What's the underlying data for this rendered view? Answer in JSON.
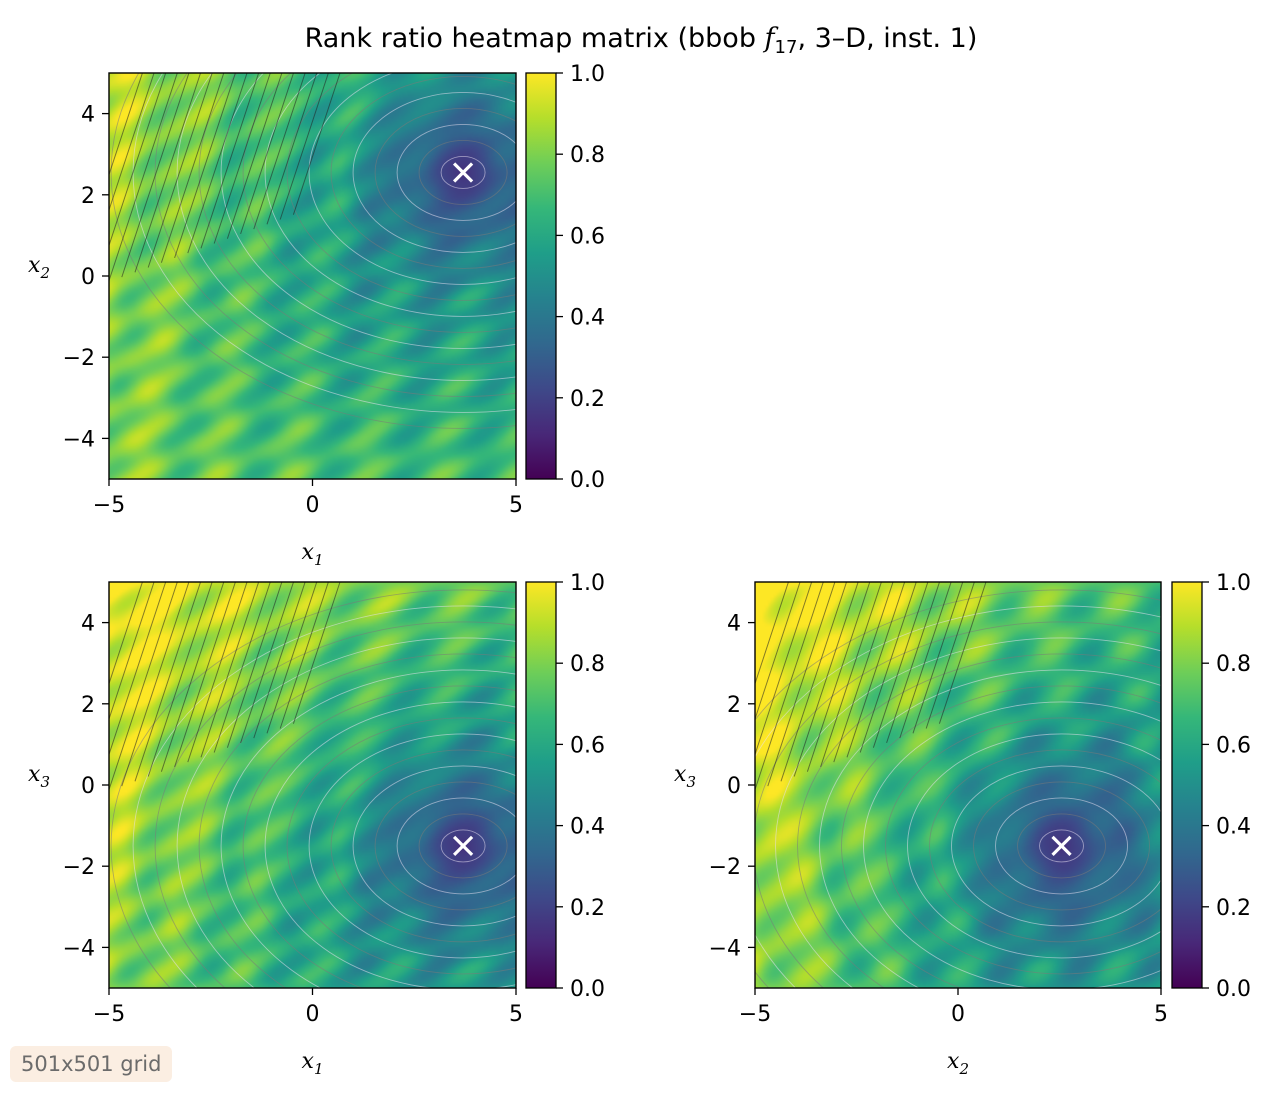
{
  "figure": {
    "title_prefix": "Rank ratio heatmap matrix (bbob ",
    "title_symbol": "f",
    "title_symbol_sub": "17",
    "title_suffix": ", 3–D, inst. 1)",
    "badge": "501x501 grid"
  },
  "colors": {
    "cmap": [
      "#440154",
      "#482878",
      "#3e4989",
      "#31688e",
      "#26828e",
      "#1f9e89",
      "#35b779",
      "#6ece58",
      "#b5de2b",
      "#fde725"
    ],
    "marker": "#ffffff"
  },
  "chart_data": [
    {
      "type": "heatmap",
      "panel": "x1-x2",
      "xlabel": "x",
      "xlabel_sub": "1",
      "ylabel": "x",
      "ylabel_sub": "2",
      "xlim": [
        -5,
        5
      ],
      "ylim": [
        -5,
        5
      ],
      "xticks": [
        -5,
        0,
        5
      ],
      "yticks": [
        -4,
        -2,
        0,
        2,
        4
      ],
      "xtick_labels": [
        "−5",
        "0",
        "5"
      ],
      "ytick_labels": [
        "−4",
        "−2",
        "0",
        "2",
        "4"
      ],
      "colorbar": {
        "range": [
          0,
          1
        ],
        "ticks": [
          0.0,
          0.2,
          0.4,
          0.6,
          0.8,
          1.0
        ],
        "tick_labels": [
          "0.0",
          "0.2",
          "0.4",
          "0.6",
          "0.8",
          "1.0"
        ]
      },
      "optimum": {
        "x": 3.7,
        "y": 2.55,
        "marker": "x"
      },
      "grid": false
    },
    {
      "type": "heatmap",
      "panel": "x1-x3",
      "xlabel": "x",
      "xlabel_sub": "1",
      "ylabel": "x",
      "ylabel_sub": "3",
      "xlim": [
        -5,
        5
      ],
      "ylim": [
        -5,
        5
      ],
      "xticks": [
        -5,
        0,
        5
      ],
      "yticks": [
        -4,
        -2,
        0,
        2,
        4
      ],
      "xtick_labels": [
        "−5",
        "0",
        "5"
      ],
      "ytick_labels": [
        "−4",
        "−2",
        "0",
        "2",
        "4"
      ],
      "colorbar": {
        "range": [
          0,
          1
        ],
        "ticks": [
          0.0,
          0.2,
          0.4,
          0.6,
          0.8,
          1.0
        ],
        "tick_labels": [
          "0.0",
          "0.2",
          "0.4",
          "0.6",
          "0.8",
          "1.0"
        ]
      },
      "optimum": {
        "x": 3.7,
        "y": -1.5,
        "marker": "x"
      },
      "grid": false
    },
    {
      "type": "heatmap",
      "panel": "x2-x3",
      "xlabel": "x",
      "xlabel_sub": "2",
      "ylabel": "x",
      "ylabel_sub": "3",
      "xlim": [
        -5,
        5
      ],
      "ylim": [
        -5,
        5
      ],
      "xticks": [
        -5,
        0,
        5
      ],
      "yticks": [
        -4,
        -2,
        0,
        2,
        4
      ],
      "xtick_labels": [
        "−5",
        "0",
        "5"
      ],
      "ytick_labels": [
        "−4",
        "−2",
        "0",
        "2",
        "4"
      ],
      "colorbar": {
        "range": [
          0,
          1
        ],
        "ticks": [
          0.0,
          0.2,
          0.4,
          0.6,
          0.8,
          1.0
        ],
        "tick_labels": [
          "0.0",
          "0.2",
          "0.4",
          "0.6",
          "0.8",
          "1.0"
        ]
      },
      "optimum": {
        "x": 2.55,
        "y": -1.5,
        "marker": "x"
      },
      "grid": false
    }
  ]
}
